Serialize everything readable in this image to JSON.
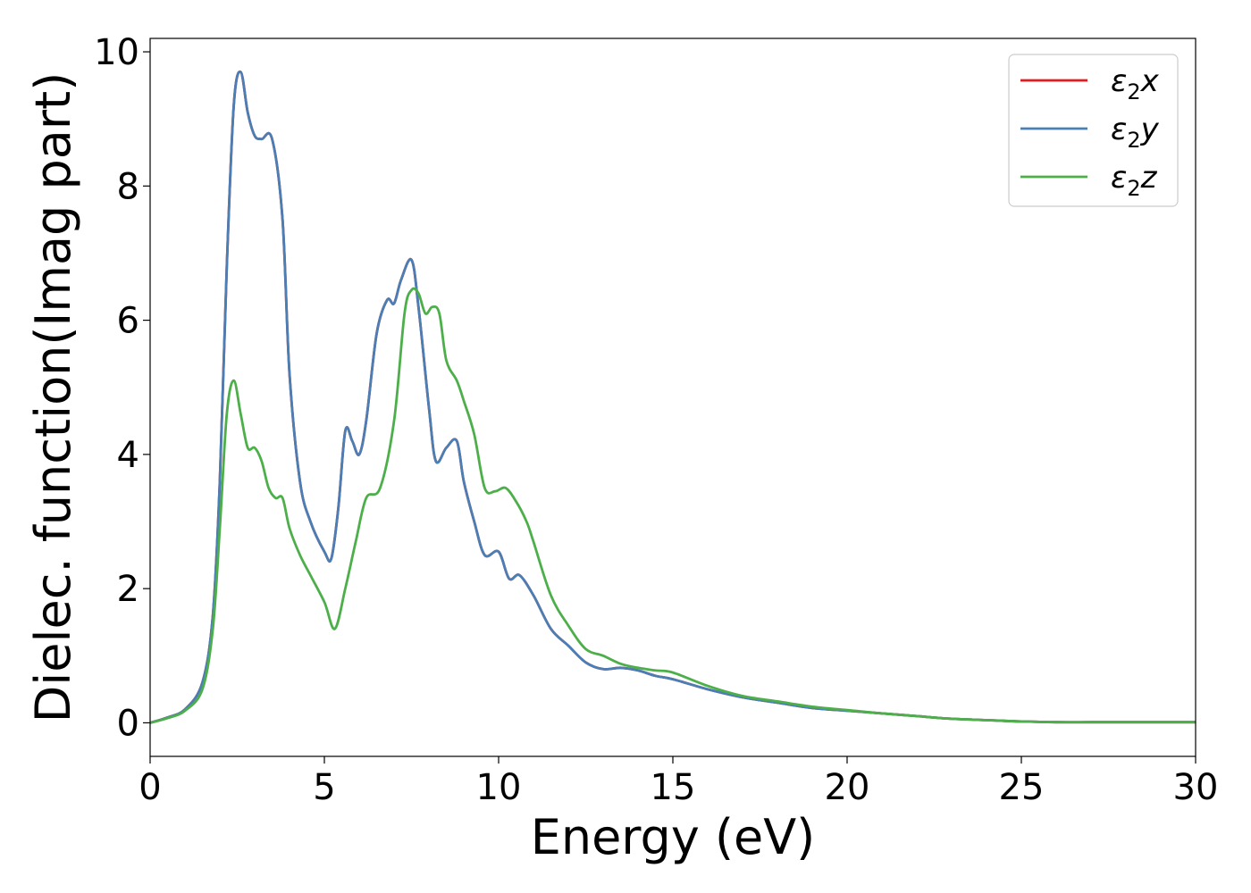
{
  "chart_data": {
    "type": "line",
    "xlabel": "Energy (eV)",
    "ylabel": "Dielec. function(Imag part)",
    "xlim": [
      0,
      30
    ],
    "ylim": [
      -0.5,
      10.2
    ],
    "xticks": [
      0,
      5,
      10,
      15,
      20,
      25,
      30
    ],
    "yticks": [
      0,
      2,
      4,
      6,
      8,
      10
    ],
    "grid": false,
    "legend_position": "top-right",
    "series": [
      {
        "name": "ε₂x",
        "legend_main": "ε",
        "legend_sub": "2",
        "legend_tail": "x",
        "color": "#e41a1c",
        "x": [
          0,
          0.5,
          1.0,
          1.5,
          1.8,
          2.0,
          2.2,
          2.4,
          2.6,
          2.8,
          3.0,
          3.2,
          3.5,
          3.8,
          4.0,
          4.3,
          4.6,
          5.0,
          5.2,
          5.4,
          5.6,
          5.8,
          6.0,
          6.2,
          6.5,
          6.8,
          7.0,
          7.2,
          7.5,
          7.7,
          8.0,
          8.2,
          8.5,
          8.8,
          9.0,
          9.3,
          9.6,
          10.0,
          10.3,
          10.6,
          11.0,
          11.5,
          12.0,
          12.5,
          13.0,
          13.5,
          14.0,
          14.5,
          15.0,
          16.0,
          17.0,
          18.0,
          19.0,
          20.0,
          21.0,
          22.0,
          23.0,
          24.0,
          25.0,
          26.0,
          27.0,
          28.0,
          29.0,
          30.0
        ],
        "y": [
          0,
          0.08,
          0.2,
          0.6,
          1.6,
          3.6,
          6.8,
          9.2,
          9.7,
          9.1,
          8.75,
          8.7,
          8.7,
          7.5,
          5.2,
          3.6,
          3.0,
          2.55,
          2.45,
          3.2,
          4.35,
          4.2,
          4.0,
          4.5,
          5.8,
          6.3,
          6.25,
          6.6,
          6.9,
          6.2,
          4.7,
          3.9,
          4.1,
          4.2,
          3.6,
          3.0,
          2.5,
          2.55,
          2.15,
          2.2,
          1.9,
          1.4,
          1.15,
          0.9,
          0.8,
          0.82,
          0.78,
          0.7,
          0.65,
          0.5,
          0.38,
          0.3,
          0.22,
          0.18,
          0.14,
          0.1,
          0.06,
          0.04,
          0.02,
          0.01,
          0.01,
          0.01,
          0.01,
          0.01
        ]
      },
      {
        "name": "ε₂y",
        "legend_main": "ε",
        "legend_sub": "2",
        "legend_tail": "y",
        "color": "#4a7fb5",
        "x": [
          0,
          0.5,
          1.0,
          1.5,
          1.8,
          2.0,
          2.2,
          2.4,
          2.6,
          2.8,
          3.0,
          3.2,
          3.5,
          3.8,
          4.0,
          4.3,
          4.6,
          5.0,
          5.2,
          5.4,
          5.6,
          5.8,
          6.0,
          6.2,
          6.5,
          6.8,
          7.0,
          7.2,
          7.5,
          7.7,
          8.0,
          8.2,
          8.5,
          8.8,
          9.0,
          9.3,
          9.6,
          10.0,
          10.3,
          10.6,
          11.0,
          11.5,
          12.0,
          12.5,
          13.0,
          13.5,
          14.0,
          14.5,
          15.0,
          16.0,
          17.0,
          18.0,
          19.0,
          20.0,
          21.0,
          22.0,
          23.0,
          24.0,
          25.0,
          26.0,
          27.0,
          28.0,
          29.0,
          30.0
        ],
        "y": [
          0,
          0.08,
          0.2,
          0.6,
          1.6,
          3.6,
          6.8,
          9.2,
          9.7,
          9.1,
          8.75,
          8.7,
          8.7,
          7.5,
          5.2,
          3.6,
          3.0,
          2.55,
          2.45,
          3.2,
          4.35,
          4.2,
          4.0,
          4.5,
          5.8,
          6.3,
          6.25,
          6.6,
          6.9,
          6.2,
          4.7,
          3.9,
          4.1,
          4.2,
          3.6,
          3.0,
          2.5,
          2.55,
          2.15,
          2.2,
          1.9,
          1.4,
          1.15,
          0.9,
          0.8,
          0.82,
          0.78,
          0.7,
          0.65,
          0.5,
          0.38,
          0.3,
          0.22,
          0.18,
          0.14,
          0.1,
          0.06,
          0.04,
          0.02,
          0.01,
          0.01,
          0.01,
          0.01,
          0.01
        ]
      },
      {
        "name": "ε₂z",
        "legend_main": "ε",
        "legend_sub": "2",
        "legend_tail": "z",
        "color": "#4daf4a",
        "x": [
          0,
          0.5,
          1.0,
          1.5,
          1.8,
          2.0,
          2.2,
          2.4,
          2.6,
          2.8,
          3.0,
          3.2,
          3.4,
          3.6,
          3.8,
          4.0,
          4.3,
          4.6,
          5.0,
          5.3,
          5.6,
          5.9,
          6.2,
          6.6,
          7.0,
          7.3,
          7.5,
          7.7,
          7.9,
          8.1,
          8.3,
          8.5,
          8.8,
          9.0,
          9.3,
          9.6,
          9.9,
          10.2,
          10.5,
          10.8,
          11.0,
          11.5,
          12.0,
          12.5,
          13.0,
          13.5,
          14.0,
          14.5,
          15.0,
          16.0,
          17.0,
          18.0,
          19.0,
          20.0,
          21.0,
          22.0,
          23.0,
          24.0,
          25.0,
          26.0,
          27.0,
          28.0,
          29.0,
          30.0
        ],
        "y": [
          0,
          0.07,
          0.18,
          0.5,
          1.4,
          2.9,
          4.6,
          5.1,
          4.6,
          4.1,
          4.1,
          3.9,
          3.5,
          3.35,
          3.35,
          2.9,
          2.5,
          2.2,
          1.8,
          1.4,
          2.0,
          2.7,
          3.35,
          3.5,
          4.5,
          6.1,
          6.45,
          6.4,
          6.1,
          6.2,
          6.1,
          5.4,
          5.1,
          4.8,
          4.3,
          3.5,
          3.45,
          3.5,
          3.3,
          3.0,
          2.7,
          1.9,
          1.45,
          1.1,
          1.0,
          0.88,
          0.82,
          0.78,
          0.75,
          0.55,
          0.4,
          0.32,
          0.24,
          0.19,
          0.14,
          0.1,
          0.06,
          0.04,
          0.02,
          0.01,
          0.01,
          0.01,
          0.01,
          0.01
        ]
      }
    ]
  }
}
